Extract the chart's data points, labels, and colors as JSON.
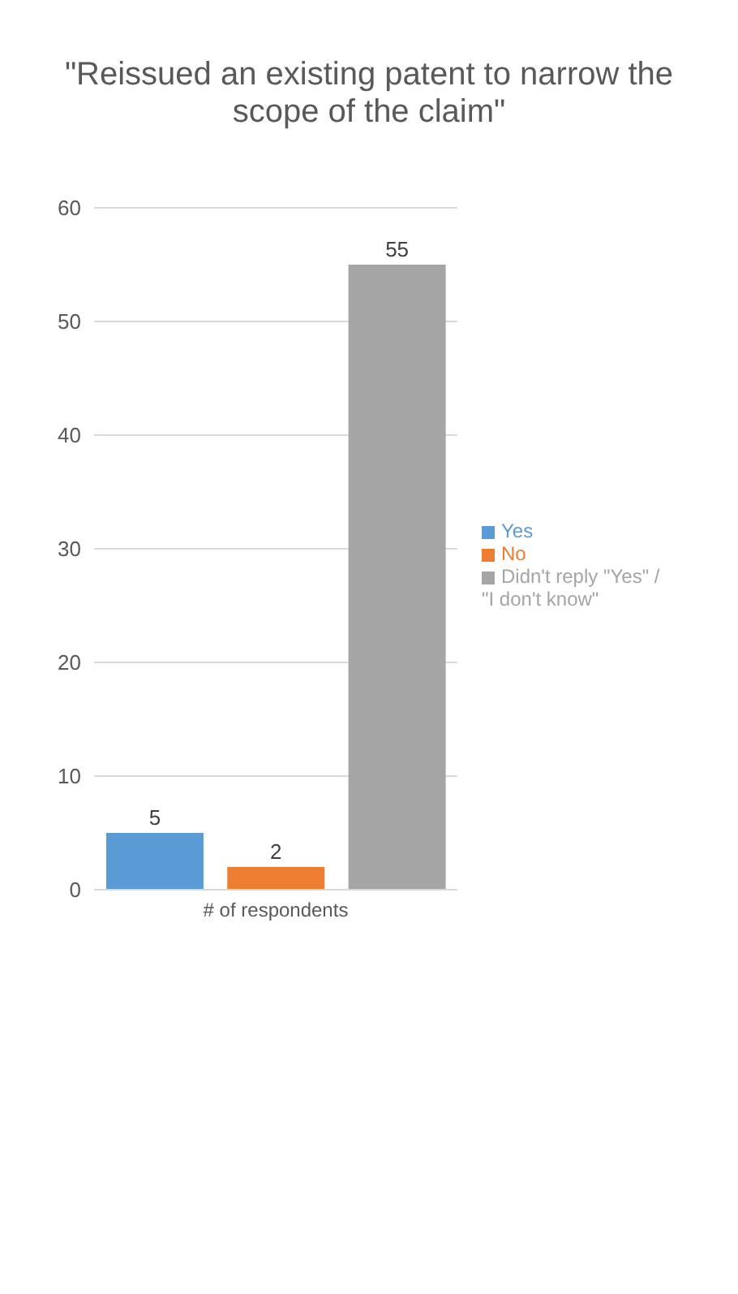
{
  "chart_data": {
    "type": "bar",
    "title": "\"Reissued an existing patent to narrow the scope of the claim\"",
    "categories": [
      null,
      "# of respondents",
      null
    ],
    "series": [
      {
        "name": "Yes",
        "color": "#5b9bd5",
        "values": [
          5,
          null,
          null
        ]
      },
      {
        "name": "No",
        "color": "#ed7d31",
        "values": [
          null,
          2,
          null
        ]
      },
      {
        "name": "Didn't reply \"Yes\" / \"I don't know\"",
        "color": "#a5a5a5",
        "values": [
          null,
          null,
          55
        ]
      }
    ],
    "ylim": [
      0,
      60
    ],
    "yticks": [
      0,
      10,
      20,
      30,
      40,
      50,
      60
    ],
    "stacked": true,
    "grid": "y",
    "legend": "right",
    "data_labels": true
  }
}
